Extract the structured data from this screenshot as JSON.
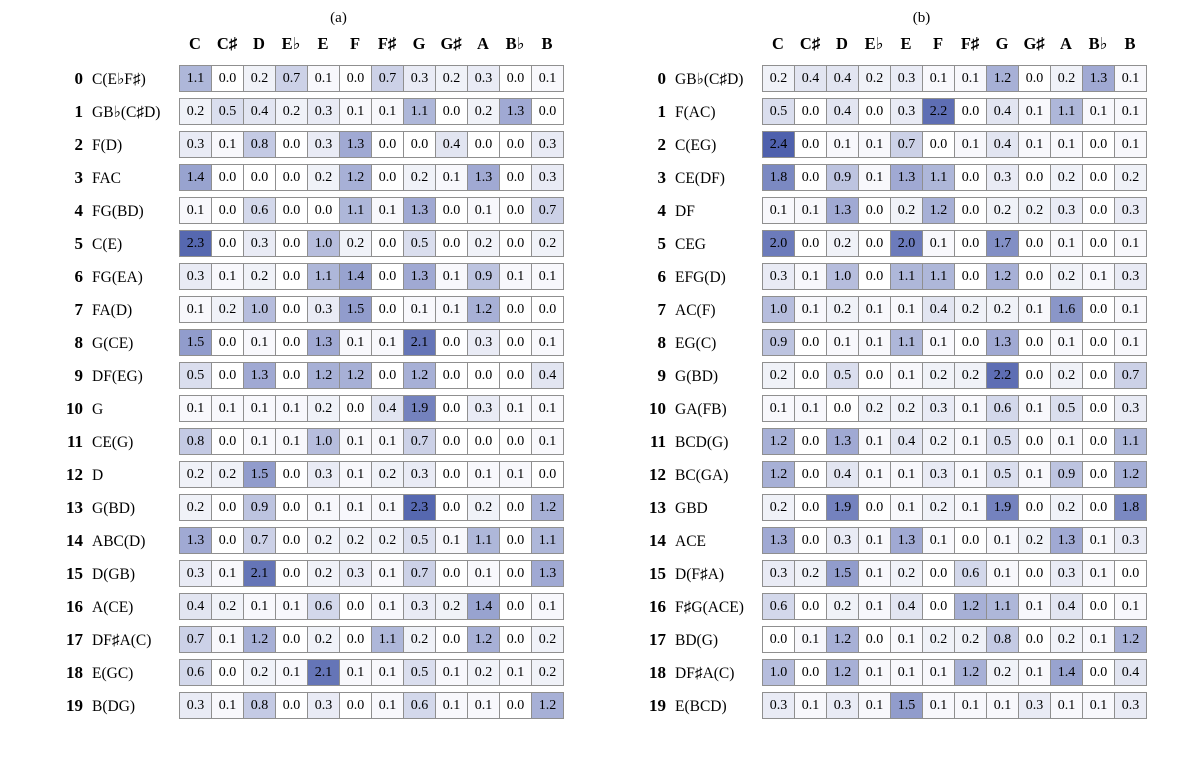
{
  "heat_color": "#4f61ad",
  "max_value": 2.4,
  "grid_line_color": "#8f8f8f",
  "chart_data": [
    {
      "type": "heatmap",
      "title": "(a)",
      "columns": [
        "C",
        "C♯",
        "D",
        "E♭",
        "E",
        "F",
        "F♯",
        "G",
        "G♯",
        "A",
        "B♭",
        "B"
      ],
      "rows": [
        {
          "index": 0,
          "label": "C(E♭F♯)",
          "values": [
            1.1,
            0.0,
            0.2,
            0.7,
            0.1,
            0.0,
            0.7,
            0.3,
            0.2,
            0.3,
            0.0,
            0.1
          ]
        },
        {
          "index": 1,
          "label": "GB♭(C♯D)",
          "values": [
            0.2,
            0.5,
            0.4,
            0.2,
            0.3,
            0.1,
            0.1,
            1.1,
            0.0,
            0.2,
            1.3,
            0.0
          ]
        },
        {
          "index": 2,
          "label": "F(D)",
          "values": [
            0.3,
            0.1,
            0.8,
            0.0,
            0.3,
            1.3,
            0.0,
            0.0,
            0.4,
            0.0,
            0.0,
            0.3
          ]
        },
        {
          "index": 3,
          "label": "FAC",
          "values": [
            1.4,
            0.0,
            0.0,
            0.0,
            0.2,
            1.2,
            0.0,
            0.2,
            0.1,
            1.3,
            0.0,
            0.3
          ]
        },
        {
          "index": 4,
          "label": "FG(BD)",
          "values": [
            0.1,
            0.0,
            0.6,
            0.0,
            0.0,
            1.1,
            0.1,
            1.3,
            0.0,
            0.1,
            0.0,
            0.7
          ]
        },
        {
          "index": 5,
          "label": "C(E)",
          "values": [
            2.3,
            0.0,
            0.3,
            0.0,
            1.0,
            0.2,
            0.0,
            0.5,
            0.0,
            0.2,
            0.0,
            0.2
          ]
        },
        {
          "index": 6,
          "label": "FG(EA)",
          "values": [
            0.3,
            0.1,
            0.2,
            0.0,
            1.1,
            1.4,
            0.0,
            1.3,
            0.1,
            0.9,
            0.1,
            0.1
          ]
        },
        {
          "index": 7,
          "label": "FA(D)",
          "values": [
            0.1,
            0.2,
            1.0,
            0.0,
            0.3,
            1.5,
            0.0,
            0.1,
            0.1,
            1.2,
            0.0,
            0.0
          ]
        },
        {
          "index": 8,
          "label": "G(CE)",
          "values": [
            1.5,
            0.0,
            0.1,
            0.0,
            1.3,
            0.1,
            0.1,
            2.1,
            0.0,
            0.3,
            0.0,
            0.1
          ]
        },
        {
          "index": 9,
          "label": "DF(EG)",
          "values": [
            0.5,
            0.0,
            1.3,
            0.0,
            1.2,
            1.2,
            0.0,
            1.2,
            0.0,
            0.0,
            0.0,
            0.4
          ]
        },
        {
          "index": 10,
          "label": "G",
          "values": [
            0.1,
            0.1,
            0.1,
            0.1,
            0.2,
            0.0,
            0.4,
            1.9,
            0.0,
            0.3,
            0.1,
            0.1
          ]
        },
        {
          "index": 11,
          "label": "CE(G)",
          "values": [
            0.8,
            0.0,
            0.1,
            0.1,
            1.0,
            0.1,
            0.1,
            0.7,
            0.0,
            0.0,
            0.0,
            0.1
          ]
        },
        {
          "index": 12,
          "label": "D",
          "values": [
            0.2,
            0.2,
            1.5,
            0.0,
            0.3,
            0.1,
            0.2,
            0.3,
            0.0,
            0.1,
            0.1,
            0.0
          ]
        },
        {
          "index": 13,
          "label": "G(BD)",
          "values": [
            0.2,
            0.0,
            0.9,
            0.0,
            0.1,
            0.1,
            0.1,
            2.3,
            0.0,
            0.2,
            0.0,
            1.2
          ]
        },
        {
          "index": 14,
          "label": "ABC(D)",
          "values": [
            1.3,
            0.0,
            0.7,
            0.0,
            0.2,
            0.2,
            0.2,
            0.5,
            0.1,
            1.1,
            0.0,
            1.1
          ]
        },
        {
          "index": 15,
          "label": "D(GB)",
          "values": [
            0.3,
            0.1,
            2.1,
            0.0,
            0.2,
            0.3,
            0.1,
            0.7,
            0.0,
            0.1,
            0.0,
            1.3
          ]
        },
        {
          "index": 16,
          "label": "A(CE)",
          "values": [
            0.4,
            0.2,
            0.1,
            0.1,
            0.6,
            0.0,
            0.1,
            0.3,
            0.2,
            1.4,
            0.0,
            0.1
          ]
        },
        {
          "index": 17,
          "label": "DF♯A(C)",
          "values": [
            0.7,
            0.1,
            1.2,
            0.0,
            0.2,
            0.0,
            1.1,
            0.2,
            0.0,
            1.2,
            0.0,
            0.2
          ]
        },
        {
          "index": 18,
          "label": "E(GC)",
          "values": [
            0.6,
            0.0,
            0.2,
            0.1,
            2.1,
            0.1,
            0.1,
            0.5,
            0.1,
            0.2,
            0.1,
            0.2
          ]
        },
        {
          "index": 19,
          "label": "B(DG)",
          "values": [
            0.3,
            0.1,
            0.8,
            0.0,
            0.3,
            0.0,
            0.1,
            0.6,
            0.1,
            0.1,
            0.0,
            1.2
          ]
        }
      ]
    },
    {
      "type": "heatmap",
      "title": "(b)",
      "columns": [
        "C",
        "C♯",
        "D",
        "E♭",
        "E",
        "F",
        "F♯",
        "G",
        "G♯",
        "A",
        "B♭",
        "B"
      ],
      "rows": [
        {
          "index": 0,
          "label": "GB♭(C♯D)",
          "values": [
            0.2,
            0.4,
            0.4,
            0.2,
            0.3,
            0.1,
            0.1,
            1.2,
            0.0,
            0.2,
            1.3,
            0.1
          ]
        },
        {
          "index": 1,
          "label": "F(AC)",
          "values": [
            0.5,
            0.0,
            0.4,
            0.0,
            0.3,
            2.2,
            0.0,
            0.4,
            0.1,
            1.1,
            0.1,
            0.1
          ]
        },
        {
          "index": 2,
          "label": "C(EG)",
          "values": [
            2.4,
            0.0,
            0.1,
            0.1,
            0.7,
            0.0,
            0.1,
            0.4,
            0.1,
            0.1,
            0.0,
            0.1
          ]
        },
        {
          "index": 3,
          "label": "CE(DF)",
          "values": [
            1.8,
            0.0,
            0.9,
            0.1,
            1.3,
            1.1,
            0.0,
            0.3,
            0.0,
            0.2,
            0.0,
            0.2
          ]
        },
        {
          "index": 4,
          "label": "DF",
          "values": [
            0.1,
            0.1,
            1.3,
            0.0,
            0.2,
            1.2,
            0.0,
            0.2,
            0.2,
            0.3,
            0.0,
            0.3
          ]
        },
        {
          "index": 5,
          "label": "CEG",
          "values": [
            2.0,
            0.0,
            0.2,
            0.0,
            2.0,
            0.1,
            0.0,
            1.7,
            0.0,
            0.1,
            0.0,
            0.1
          ]
        },
        {
          "index": 6,
          "label": "EFG(D)",
          "values": [
            0.3,
            0.1,
            1.0,
            0.0,
            1.1,
            1.1,
            0.0,
            1.2,
            0.0,
            0.2,
            0.1,
            0.3
          ]
        },
        {
          "index": 7,
          "label": "AC(F)",
          "values": [
            1.0,
            0.1,
            0.2,
            0.1,
            0.1,
            0.4,
            0.2,
            0.2,
            0.1,
            1.6,
            0.0,
            0.1
          ]
        },
        {
          "index": 8,
          "label": "EG(C)",
          "values": [
            0.9,
            0.0,
            0.1,
            0.1,
            1.1,
            0.1,
            0.0,
            1.3,
            0.0,
            0.1,
            0.0,
            0.1
          ]
        },
        {
          "index": 9,
          "label": "G(BD)",
          "values": [
            0.2,
            0.0,
            0.5,
            0.0,
            0.1,
            0.2,
            0.2,
            2.2,
            0.0,
            0.2,
            0.0,
            0.7
          ]
        },
        {
          "index": 10,
          "label": "GA(FB)",
          "values": [
            0.1,
            0.1,
            0.0,
            0.2,
            0.2,
            0.3,
            0.1,
            0.6,
            0.1,
            0.5,
            0.0,
            0.3
          ]
        },
        {
          "index": 11,
          "label": "BCD(G)",
          "values": [
            1.2,
            0.0,
            1.3,
            0.1,
            0.4,
            0.2,
            0.1,
            0.5,
            0.0,
            0.1,
            0.0,
            1.1
          ]
        },
        {
          "index": 12,
          "label": "BC(GA)",
          "values": [
            1.2,
            0.0,
            0.4,
            0.1,
            0.1,
            0.3,
            0.1,
            0.5,
            0.1,
            0.9,
            0.0,
            1.2
          ]
        },
        {
          "index": 13,
          "label": "GBD",
          "values": [
            0.2,
            0.0,
            1.9,
            0.0,
            0.1,
            0.2,
            0.1,
            1.9,
            0.0,
            0.2,
            0.0,
            1.8
          ]
        },
        {
          "index": 14,
          "label": "ACE",
          "values": [
            1.3,
            0.0,
            0.3,
            0.1,
            1.3,
            0.1,
            0.0,
            0.1,
            0.2,
            1.3,
            0.1,
            0.3
          ]
        },
        {
          "index": 15,
          "label": "D(F♯A)",
          "values": [
            0.3,
            0.2,
            1.5,
            0.1,
            0.2,
            0.0,
            0.6,
            0.1,
            0.0,
            0.3,
            0.1,
            0.0
          ]
        },
        {
          "index": 16,
          "label": "F♯G(ACE)",
          "values": [
            0.6,
            0.0,
            0.2,
            0.1,
            0.4,
            0.0,
            1.2,
            1.1,
            0.1,
            0.4,
            0.0,
            0.1
          ]
        },
        {
          "index": 17,
          "label": "BD(G)",
          "values": [
            0.0,
            0.1,
            1.2,
            0.0,
            0.1,
            0.2,
            0.2,
            0.8,
            0.0,
            0.2,
            0.1,
            1.2
          ]
        },
        {
          "index": 18,
          "label": "DF♯A(C)",
          "values": [
            1.0,
            0.0,
            1.2,
            0.1,
            0.1,
            0.1,
            1.2,
            0.2,
            0.1,
            1.4,
            0.0,
            0.4
          ]
        },
        {
          "index": 19,
          "label": "E(BCD)",
          "values": [
            0.3,
            0.1,
            0.3,
            0.1,
            1.5,
            0.1,
            0.1,
            0.1,
            0.3,
            0.1,
            0.1,
            0.3
          ]
        }
      ]
    }
  ]
}
